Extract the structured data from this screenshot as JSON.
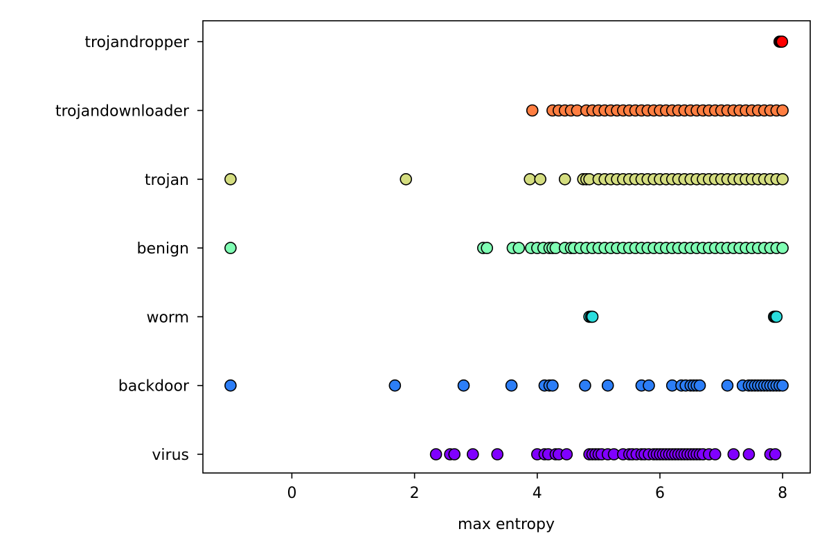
{
  "chart_data": {
    "type": "scatter",
    "title": "",
    "xlabel": "max entropy",
    "ylabel": "",
    "xlim": [
      -1.45,
      8.45
    ],
    "xticks": [
      0,
      2,
      4,
      6,
      8
    ],
    "grid": false,
    "categories": [
      "virus",
      "backdoor",
      "worm",
      "benign",
      "trojan",
      "trojandownloader",
      "trojandropper"
    ],
    "series": [
      {
        "category": "virus",
        "color": "#8000ff",
        "x": [
          2.35,
          2.58,
          2.65,
          2.95,
          3.35,
          4.0,
          4.12,
          4.18,
          4.3,
          4.35,
          4.48,
          4.85,
          4.9,
          4.95,
          5.0,
          5.05,
          5.15,
          5.25,
          5.4,
          5.5,
          5.55,
          5.62,
          5.7,
          5.75,
          5.82,
          5.9,
          5.95,
          6.0,
          6.05,
          6.1,
          6.15,
          6.2,
          6.25,
          6.3,
          6.35,
          6.4,
          6.45,
          6.5,
          6.55,
          6.6,
          6.65,
          6.7,
          6.8,
          6.9,
          7.2,
          7.45,
          7.8,
          7.88
        ]
      },
      {
        "category": "backdoor",
        "color": "#2c7ef7",
        "x": [
          -1.0,
          1.68,
          2.8,
          3.58,
          4.12,
          4.2,
          4.25,
          4.78,
          5.15,
          5.7,
          5.82,
          6.2,
          6.35,
          6.42,
          6.5,
          6.55,
          6.6,
          6.65,
          7.1,
          7.35,
          7.45,
          7.5,
          7.55,
          7.6,
          7.65,
          7.7,
          7.75,
          7.8,
          7.85,
          7.9,
          7.95,
          8.0
        ]
      },
      {
        "category": "worm",
        "color": "#2adddd",
        "x": [
          4.85,
          4.88,
          4.9,
          7.86,
          7.88,
          7.9
        ]
      },
      {
        "category": "benign",
        "color": "#80ffb4",
        "x": [
          -1.0,
          3.12,
          3.18,
          3.6,
          3.7,
          3.9,
          4.0,
          4.1,
          4.2,
          4.25,
          4.3,
          4.45,
          4.55,
          4.6,
          4.7,
          4.8,
          4.9,
          5.0,
          5.1,
          5.2,
          5.3,
          5.4,
          5.5,
          5.6,
          5.7,
          5.8,
          5.9,
          6.0,
          6.1,
          6.2,
          6.3,
          6.4,
          6.5,
          6.6,
          6.7,
          6.8,
          6.9,
          7.0,
          7.1,
          7.2,
          7.3,
          7.4,
          7.5,
          7.6,
          7.7,
          7.8,
          7.9,
          8.0
        ]
      },
      {
        "category": "trojan",
        "color": "#d4dd80",
        "x": [
          -1.0,
          1.86,
          3.88,
          4.05,
          4.45,
          4.75,
          4.8,
          4.85,
          5.0,
          5.1,
          5.2,
          5.3,
          5.4,
          5.5,
          5.6,
          5.7,
          5.8,
          5.9,
          6.0,
          6.1,
          6.2,
          6.3,
          6.4,
          6.5,
          6.6,
          6.7,
          6.8,
          6.9,
          7.0,
          7.1,
          7.2,
          7.3,
          7.4,
          7.5,
          7.6,
          7.7,
          7.8,
          7.9,
          8.0
        ]
      },
      {
        "category": "trojandownloader",
        "color": "#ff7e41",
        "x": [
          3.92,
          4.25,
          4.35,
          4.45,
          4.55,
          4.65,
          4.8,
          4.9,
          5.0,
          5.1,
          5.2,
          5.3,
          5.4,
          5.5,
          5.6,
          5.7,
          5.8,
          5.9,
          6.0,
          6.1,
          6.2,
          6.3,
          6.4,
          6.5,
          6.6,
          6.7,
          6.8,
          6.9,
          7.0,
          7.1,
          7.2,
          7.3,
          7.4,
          7.5,
          7.6,
          7.7,
          7.8,
          7.9,
          8.0
        ]
      },
      {
        "category": "trojandropper",
        "color": "#ff0000",
        "x": [
          7.95,
          7.97,
          7.99
        ]
      }
    ]
  }
}
